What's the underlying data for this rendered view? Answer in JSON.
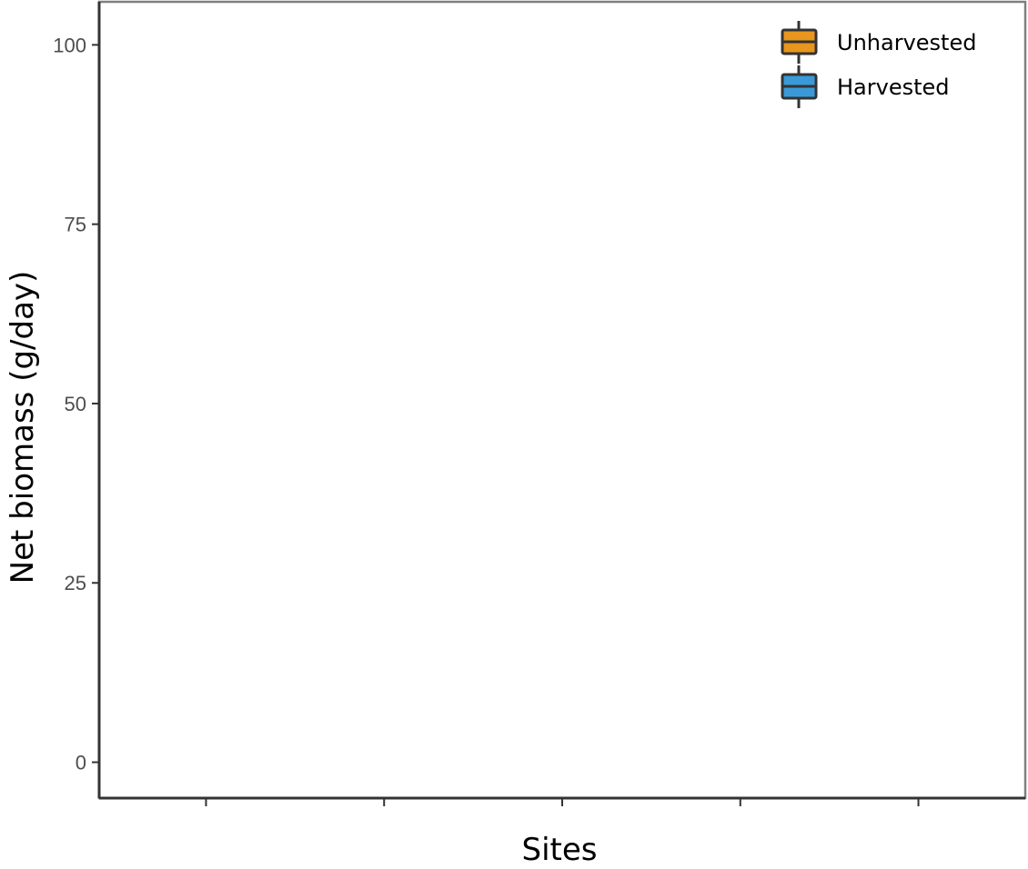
{
  "chart_data": {
    "type": "box",
    "title": "",
    "xlabel": "Sites",
    "ylabel": "Net  biomass (g/day)",
    "ylim": [
      -5,
      106
    ],
    "y_ticks": [
      0,
      25,
      50,
      75,
      100
    ],
    "y_tick_labels": [
      "0",
      "25",
      "50",
      "75",
      "100"
    ],
    "x_tick_count": 5,
    "categories": [],
    "series": [
      {
        "name": "Unharvested",
        "color": "#E8961E",
        "values": []
      },
      {
        "name": "Harvested",
        "color": "#3A9AD9",
        "values": []
      }
    ],
    "grid": false,
    "legend_position": "top-right"
  }
}
